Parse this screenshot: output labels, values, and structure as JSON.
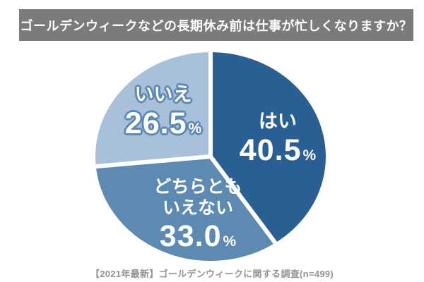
{
  "title": {
    "text": "ゴールデンウィークなどの長期休み前は仕事が忙しくなりますか？",
    "bg_color": "#7b7b7b",
    "text_color": "#ffffff"
  },
  "caption": {
    "text": "【2021年最新】ゴールデンウィークに関する調査(n=499)",
    "text_color": "#949494"
  },
  "chart_data": {
    "type": "pie",
    "title": "ゴールデンウィークなどの長期休み前は仕事が忙しくなりますか？",
    "unit": "%",
    "total": 100,
    "start_angle_deg": 0,
    "direction": "clockwise",
    "slice_gap_color": "#ffffff",
    "label_text_color": "#ffffff",
    "source_note": "【2021年最新】ゴールデンウィークに関する調査(n=499)",
    "slices": [
      {
        "key": "yes",
        "label": "はい",
        "label_lines": [
          "はい"
        ],
        "value": 40.5,
        "display_value": "40.5",
        "unit": "%",
        "color": "#2a5f93"
      },
      {
        "key": "neither",
        "label": "どちらともいえない",
        "label_lines": [
          "どちらとも",
          "いえない"
        ],
        "value": 33.0,
        "display_value": "33.0",
        "unit": "%",
        "color": "#5d8ab3"
      },
      {
        "key": "no",
        "label": "いいえ",
        "label_lines": [
          "いいえ"
        ],
        "value": 26.5,
        "display_value": "26.5",
        "unit": "%",
        "color": "#a9c0da",
        "label_outline_color": "#5c88b5"
      }
    ]
  }
}
